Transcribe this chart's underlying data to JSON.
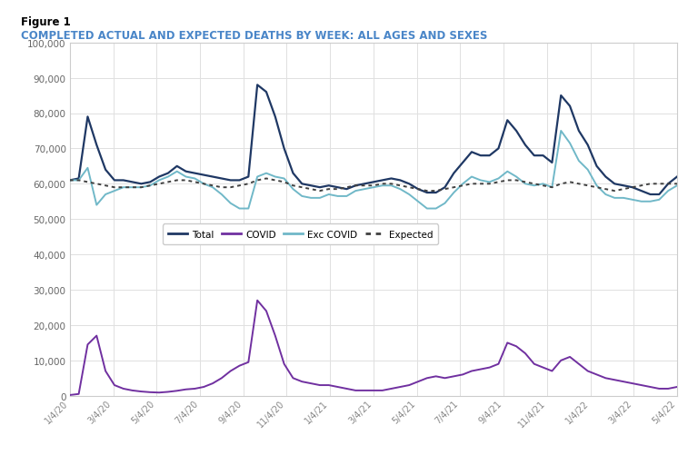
{
  "figure_label": "Figure 1",
  "title": "COMPLETED ACTUAL AND EXPECTED DEATHS BY WEEK: ALL AGES AND SEXES",
  "title_color": "#4A86C8",
  "figure_label_color": "#000000",
  "background_color": "#ffffff",
  "plot_background": "#ffffff",
  "colors": {
    "total": "#1F3864",
    "covid": "#7030A0",
    "exc_covid": "#70B8C8",
    "expected": "#404040"
  },
  "legend_labels": [
    "Total",
    "COVID",
    "Exc COVID",
    "Expected"
  ],
  "ylim": [
    0,
    100000
  ],
  "yticks": [
    0,
    10000,
    20000,
    30000,
    40000,
    50000,
    60000,
    70000,
    80000,
    90000,
    100000
  ],
  "x_labels": [
    "1/4/20",
    "3/4/20",
    "5/4/20",
    "7/4/20",
    "9/4/20",
    "11/4/20",
    "1/4/21",
    "3/4/21",
    "5/4/21",
    "7/4/21",
    "9/4/21",
    "11/4/21",
    "1/4/22",
    "3/4/22",
    "5/4/22"
  ],
  "total": [
    61000,
    61500,
    79000,
    71000,
    64000,
    61000,
    61000,
    60500,
    60000,
    60500,
    62000,
    63000,
    65000,
    63500,
    63000,
    62500,
    62000,
    61500,
    61000,
    61000,
    62000,
    88000,
    86000,
    79000,
    70000,
    63000,
    60000,
    59500,
    59000,
    59500,
    59000,
    58500,
    59500,
    60000,
    60500,
    61000,
    61500,
    61000,
    60000,
    58500,
    57500,
    57500,
    59000,
    63000,
    66000,
    69000,
    68000,
    68000,
    70000,
    78000,
    75000,
    71000,
    68000,
    68000,
    66000,
    85000,
    82000,
    75000,
    71000,
    65000,
    62000,
    60000,
    59500,
    59000,
    58000,
    57000,
    57000,
    60000,
    62000
  ],
  "covid": [
    200,
    500,
    14500,
    17000,
    7000,
    3000,
    2000,
    1500,
    1200,
    1000,
    900,
    1100,
    1400,
    1800,
    2000,
    2500,
    3500,
    5000,
    7000,
    8500,
    9500,
    27000,
    24000,
    17000,
    9000,
    5000,
    4000,
    3500,
    3000,
    3000,
    2500,
    2000,
    1500,
    1500,
    1500,
    1500,
    2000,
    2500,
    3000,
    4000,
    5000,
    5500,
    5000,
    5500,
    6000,
    7000,
    7500,
    8000,
    9000,
    15000,
    14000,
    12000,
    9000,
    8000,
    7000,
    10000,
    11000,
    9000,
    7000,
    6000,
    5000,
    4500,
    4000,
    3500,
    3000,
    2500,
    2000,
    2000,
    2500
  ],
  "exc_covid": [
    61000,
    61000,
    64500,
    54000,
    57000,
    58000,
    59000,
    59000,
    59000,
    59500,
    61000,
    62000,
    63500,
    62000,
    61500,
    60000,
    59000,
    57000,
    54500,
    53000,
    53000,
    62000,
    63000,
    62000,
    61500,
    58500,
    56500,
    56000,
    56000,
    57000,
    56500,
    56500,
    58000,
    58500,
    59000,
    59500,
    59500,
    58500,
    57000,
    55000,
    53000,
    53000,
    54500,
    57500,
    60000,
    62000,
    61000,
    60500,
    61500,
    63500,
    62000,
    60000,
    59500,
    60000,
    59000,
    75000,
    71500,
    66500,
    64000,
    59500,
    57000,
    56000,
    56000,
    55500,
    55000,
    55000,
    55500,
    58000,
    59500
  ],
  "expected": [
    61000,
    61000,
    60500,
    60000,
    59500,
    59000,
    59000,
    59000,
    59000,
    59500,
    60000,
    60500,
    61000,
    61000,
    60500,
    60000,
    59500,
    59000,
    59000,
    59500,
    60000,
    61000,
    61500,
    61000,
    60500,
    59500,
    59000,
    58500,
    58000,
    58500,
    58500,
    59000,
    59500,
    59500,
    59500,
    60000,
    60000,
    59500,
    59000,
    58500,
    58000,
    58000,
    58500,
    59000,
    59500,
    60000,
    60000,
    60000,
    60500,
    61000,
    61000,
    60500,
    60000,
    59500,
    59000,
    60000,
    60500,
    60000,
    59500,
    59000,
    58500,
    58000,
    58500,
    59000,
    59500,
    60000,
    60000,
    60000,
    60000
  ]
}
